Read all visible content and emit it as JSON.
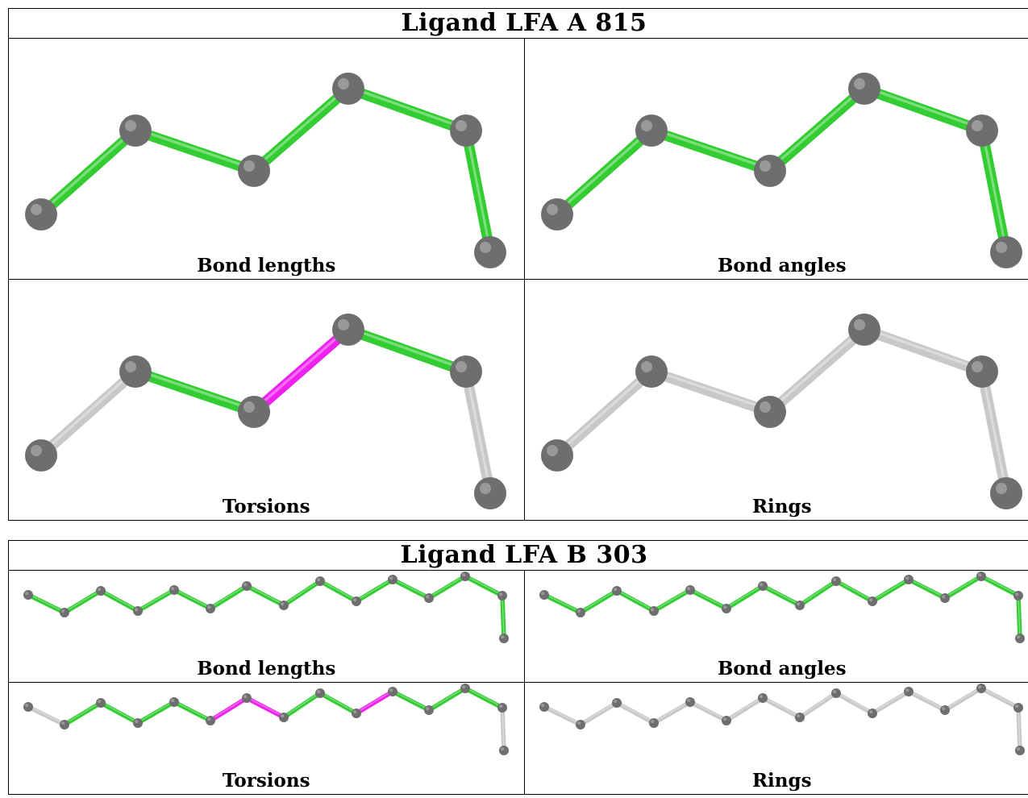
{
  "ligand_a": {
    "title": "Ligand LFA A 815",
    "captions": [
      "Bond lengths",
      "Bond angles",
      "Torsions",
      "Rings"
    ],
    "bond_colors": {
      "lengths": [
        "green",
        "green",
        "green",
        "green",
        "green"
      ],
      "angles": [
        "green",
        "green",
        "green",
        "green",
        "green"
      ],
      "torsions": [
        "grey",
        "green",
        "magenta",
        "green",
        "grey"
      ],
      "rings": [
        "grey",
        "grey",
        "grey",
        "grey",
        "grey"
      ]
    }
  },
  "ligand_b": {
    "title": "Ligand LFA B 303",
    "captions": [
      "Bond lengths",
      "Bond angles",
      "Torsions",
      "Rings"
    ],
    "bond_colors": {
      "lengths": [
        "green",
        "green",
        "green",
        "green",
        "green",
        "green",
        "green",
        "green",
        "green",
        "green",
        "green",
        "green",
        "green",
        "green"
      ],
      "angles": [
        "green",
        "green",
        "green",
        "green",
        "green",
        "green",
        "green",
        "green",
        "green",
        "green",
        "green",
        "green",
        "green",
        "green"
      ],
      "torsions": [
        "grey",
        "green",
        "green",
        "green",
        "green",
        "magenta",
        "magenta",
        "green",
        "green",
        "magenta",
        "green",
        "green",
        "green",
        "grey"
      ],
      "rings": [
        "grey",
        "grey",
        "grey",
        "grey",
        "grey",
        "grey",
        "grey",
        "grey",
        "grey",
        "grey",
        "grey",
        "grey",
        "grey",
        "grey"
      ]
    }
  },
  "colors": {
    "green": "#33cc33",
    "magenta": "#ee22ee",
    "grey": "#c8c8c8",
    "atom": "#6e6e6e"
  }
}
